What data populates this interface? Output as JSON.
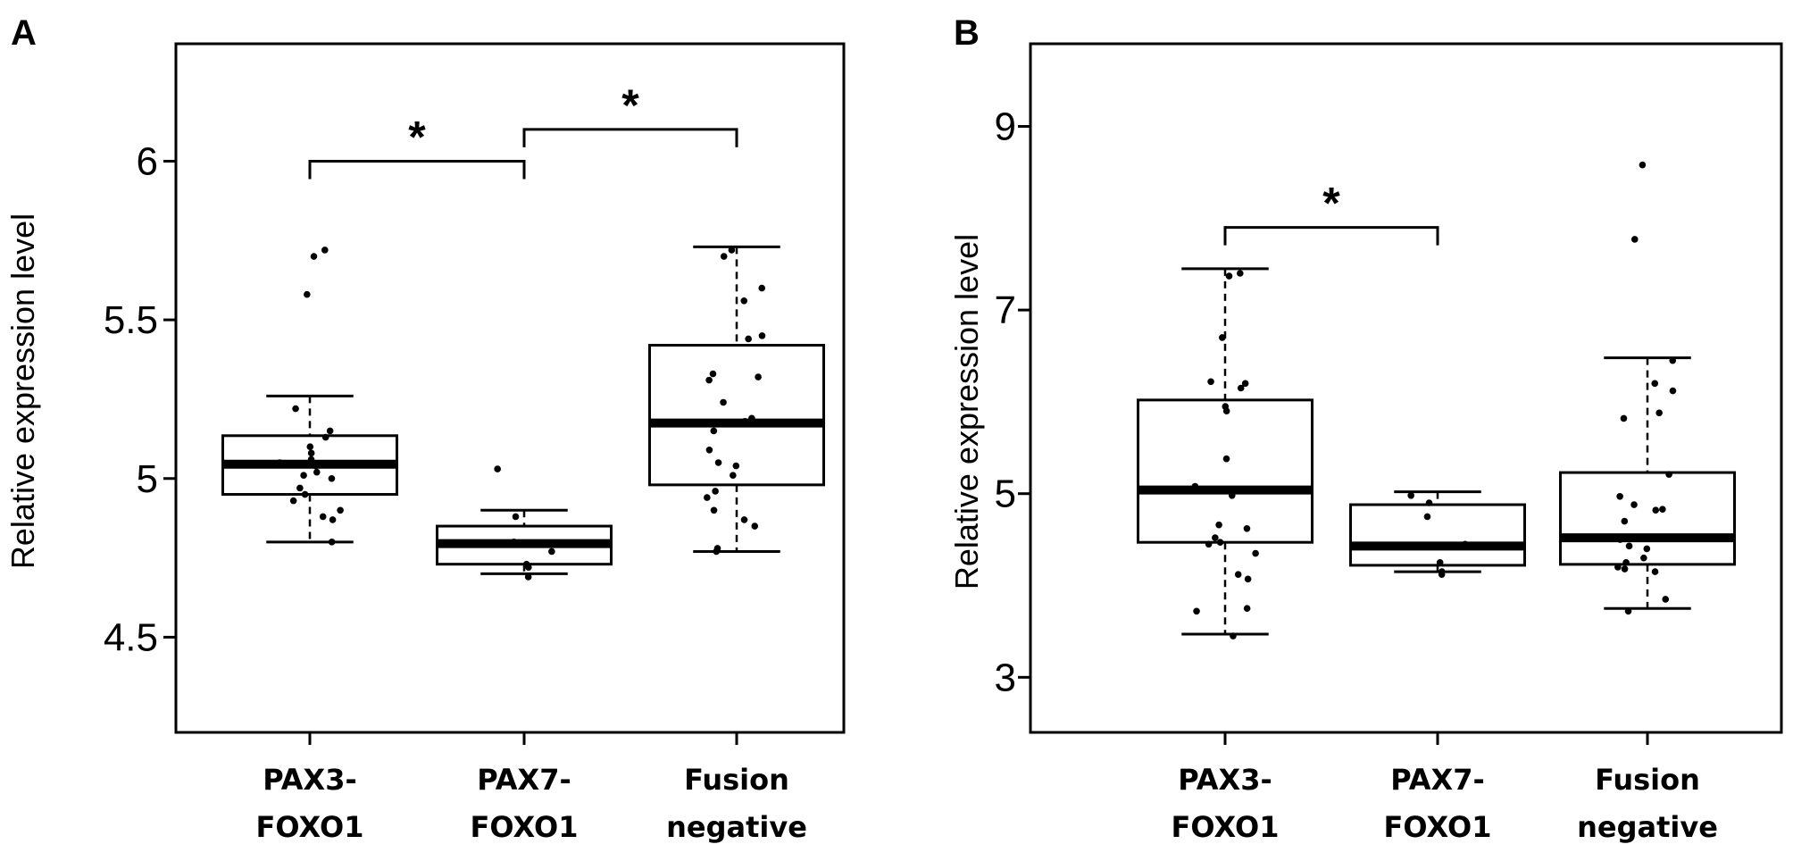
{
  "chart_data": [
    {
      "type": "box",
      "panel": "A",
      "ylabel": "Relative expression level",
      "yticks": [
        "4.5",
        "5",
        "5.5",
        "6"
      ],
      "tick_values": [
        4.5,
        5,
        5.5,
        6
      ],
      "ylim": [
        4.2,
        6.37
      ],
      "categories": [
        [
          "PAX3-",
          "FOXO1"
        ],
        [
          "PAX7-",
          "FOXO1"
        ],
        [
          "Fusion",
          "negative"
        ]
      ],
      "boxes": [
        {
          "whisker_low": 4.8,
          "q1": 4.95,
          "median": 5.045,
          "q3": 5.135,
          "whisker_high": 5.26,
          "points": [
            5.72,
            5.7,
            5.58,
            5.22,
            5.15,
            5.13,
            5.1,
            5.08,
            5.06,
            5.05,
            5.04,
            5.02,
            5.01,
            5.0,
            4.97,
            4.95,
            4.93,
            4.9,
            4.88,
            4.87,
            4.8
          ]
        },
        {
          "whisker_low": 4.7,
          "q1": 4.73,
          "median": 4.795,
          "q3": 4.85,
          "whisker_high": 4.9,
          "points": [
            5.03,
            4.88,
            4.8,
            4.77,
            4.73,
            4.72,
            4.69
          ]
        },
        {
          "whisker_low": 4.77,
          "q1": 4.98,
          "median": 5.175,
          "q3": 5.42,
          "whisker_high": 5.73,
          "points": [
            5.72,
            5.7,
            5.6,
            5.56,
            5.45,
            5.44,
            5.33,
            5.32,
            5.31,
            5.24,
            5.19,
            5.18,
            5.15,
            5.09,
            5.05,
            5.04,
            5.01,
            4.96,
            4.94,
            4.9,
            4.87,
            4.85,
            4.78,
            4.77
          ]
        }
      ],
      "significance": [
        {
          "from": 0,
          "to": 1,
          "label": "*",
          "y": 6.0
        },
        {
          "from": 1,
          "to": 2,
          "label": "*",
          "y": 6.1
        }
      ]
    },
    {
      "type": "box",
      "panel": "B",
      "ylabel": "Relative expression level",
      "yticks": [
        "3",
        "5",
        "7",
        "9"
      ],
      "tick_values": [
        3,
        5,
        7,
        9
      ],
      "ylim": [
        2.4,
        9.9
      ],
      "categories": [
        [
          "PAX3-",
          "FOXO1"
        ],
        [
          "PAX7-",
          "FOXO1"
        ],
        [
          "Fusion",
          "negative"
        ]
      ],
      "boxes": [
        {
          "whisker_low": 3.47,
          "q1": 4.47,
          "median": 5.04,
          "q3": 6.02,
          "whisker_high": 7.45,
          "points": [
            7.4,
            7.37,
            6.7,
            6.22,
            6.2,
            6.15,
            5.95,
            5.9,
            5.38,
            5.08,
            5.03,
            4.98,
            4.66,
            4.62,
            4.52,
            4.47,
            4.45,
            4.35,
            4.12,
            4.07,
            3.75,
            3.72,
            3.45
          ]
        },
        {
          "whisker_low": 4.15,
          "q1": 4.22,
          "median": 4.43,
          "q3": 4.88,
          "whisker_high": 5.02,
          "points": [
            4.98,
            4.9,
            4.75,
            4.45,
            4.25,
            4.15,
            4.12
          ]
        },
        {
          "whisker_low": 3.75,
          "q1": 4.23,
          "median": 4.52,
          "q3": 5.23,
          "whisker_high": 6.48,
          "points": [
            8.58,
            7.77,
            6.45,
            6.2,
            6.12,
            5.88,
            5.82,
            5.21,
            4.97,
            4.88,
            4.83,
            4.82,
            4.7,
            4.5,
            4.43,
            4.4,
            4.3,
            4.25,
            4.2,
            4.18,
            4.15,
            3.85,
            3.72
          ]
        }
      ],
      "significance": [
        {
          "from": 0,
          "to": 1,
          "label": "*",
          "y": 7.9
        }
      ]
    }
  ]
}
